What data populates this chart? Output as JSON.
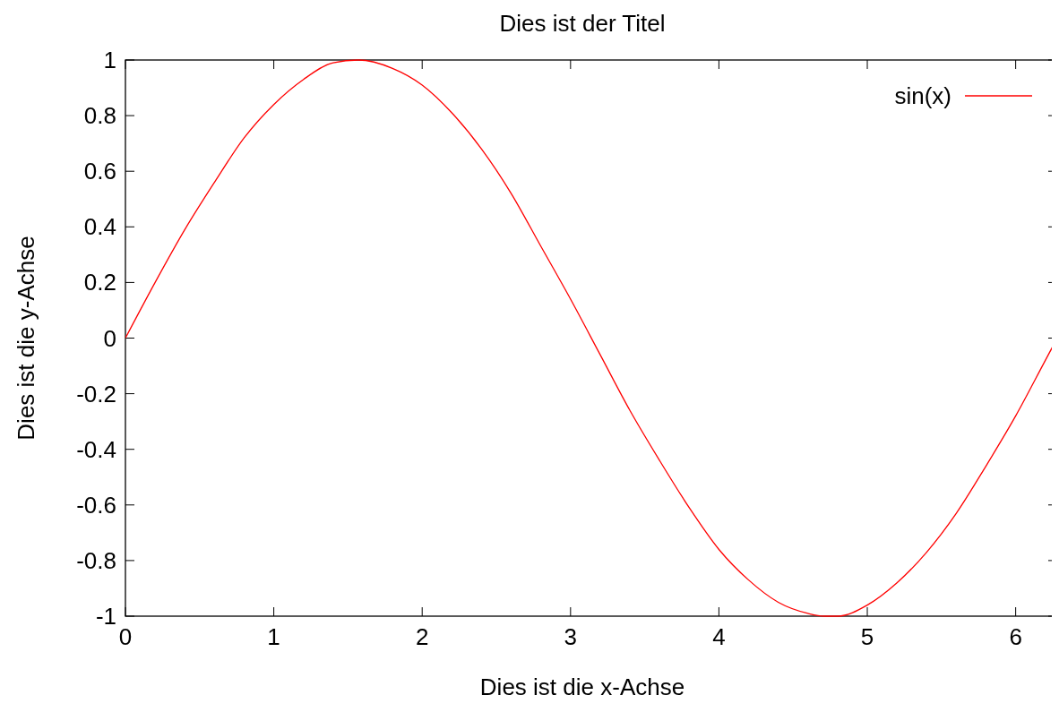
{
  "chart_data": {
    "type": "line",
    "title": "Dies ist der Titel",
    "xlabel": "Dies ist die x-Achse",
    "ylabel": "Dies ist die y-Achse",
    "xlim": [
      0,
      6.28
    ],
    "ylim": [
      -1,
      1
    ],
    "xticks": [
      0,
      1,
      2,
      3,
      4,
      5,
      6
    ],
    "yticks": [
      -1,
      -0.8,
      -0.6,
      -0.4,
      -0.2,
      0,
      0.2,
      0.4,
      0.6,
      0.8,
      1
    ],
    "grid": false,
    "legend": "top right",
    "line_style": "solid",
    "series": [
      {
        "name": "sin(x)",
        "color": "#ff0000",
        "x": [
          0,
          0.2,
          0.4,
          0.6,
          0.8,
          1,
          1.2,
          1.4,
          1.57,
          1.8,
          2,
          2.2,
          2.4,
          2.6,
          2.8,
          3,
          3.2,
          3.4,
          3.6,
          3.8,
          4,
          4.2,
          4.4,
          4.6,
          4.71,
          4.8,
          5,
          5.2,
          5.4,
          5.6,
          5.8,
          6,
          6.2,
          6.28
        ],
        "values": [
          0,
          0.2,
          0.39,
          0.56,
          0.72,
          0.84,
          0.93,
          0.99,
          1,
          0.97,
          0.91,
          0.81,
          0.68,
          0.52,
          0.33,
          0.14,
          -0.06,
          -0.26,
          -0.44,
          -0.61,
          -0.76,
          -0.87,
          -0.95,
          -0.99,
          -1,
          -1,
          -0.96,
          -0.88,
          -0.77,
          -0.63,
          -0.46,
          -0.28,
          -0.08,
          0
        ]
      }
    ]
  }
}
